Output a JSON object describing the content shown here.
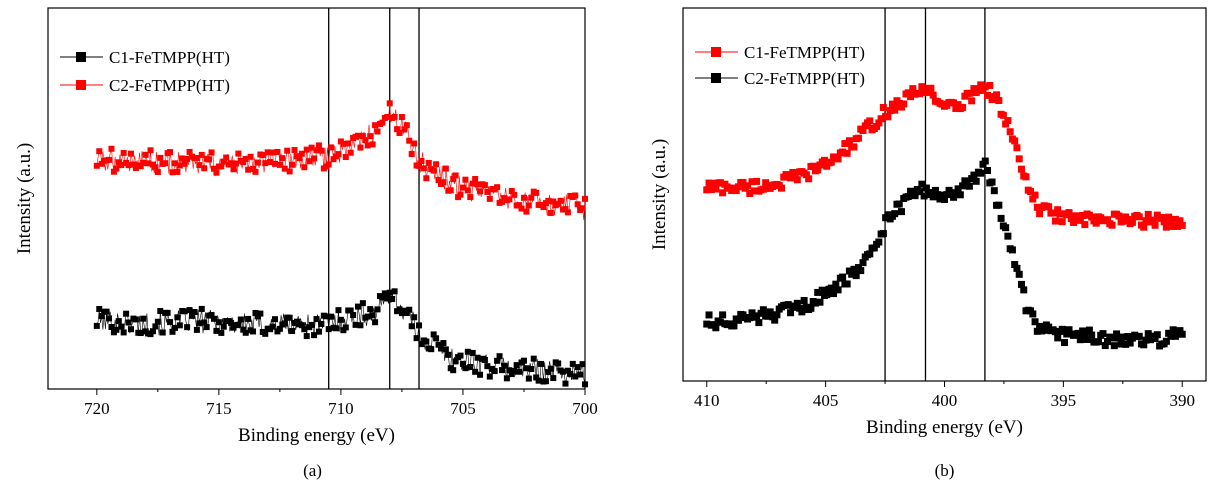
{
  "chart_data": [
    {
      "panel_label": "(a)",
      "type": "scatter",
      "xlabel": "Binding energy (eV)",
      "ylabel": "Intensity (a.u.)",
      "x_reversed": true,
      "xlim": [
        700,
        722
      ],
      "ylim": [
        0,
        100
      ],
      "xticks": [
        720,
        715,
        710,
        705,
        700
      ],
      "y_ticks_shown": false,
      "legend_position": "top-left",
      "reference_lines": [
        710.5,
        708.0,
        706.8
      ],
      "series": [
        {
          "name": "C1-FeTMPP(HT)",
          "color": "#000000",
          "marker": "square",
          "x": [
            720,
            718,
            716,
            714,
            712,
            710.6,
            709.5,
            708.5,
            708.0,
            707.6,
            707.2,
            706.8,
            706.2,
            705.5,
            704.5,
            703.5,
            702.5,
            701.5,
            700.5,
            700
          ],
          "y": [
            18,
            17,
            18,
            17,
            17,
            17,
            19,
            20,
            26,
            22,
            19,
            14,
            12,
            8,
            7,
            6,
            5,
            5,
            4,
            4
          ]
        },
        {
          "name": "C2-FeTMPP(HT)",
          "color": "#ff0000",
          "marker": "square",
          "x": [
            720,
            718,
            716,
            714,
            712,
            710.6,
            709.5,
            708.5,
            708.0,
            707.6,
            707.2,
            706.8,
            706.2,
            705.5,
            704.5,
            703.5,
            702.5,
            701.5,
            700.5,
            700
          ],
          "y": [
            60,
            60,
            59,
            59,
            60,
            61,
            64,
            68,
            72,
            70,
            66,
            60,
            57,
            54,
            52,
            50,
            49,
            48,
            48,
            47
          ]
        }
      ]
    },
    {
      "panel_label": "(b)",
      "type": "scatter",
      "xlabel": "Binding energy (eV)",
      "ylabel": "Intensity (a.u.)",
      "x_reversed": true,
      "xlim": [
        389,
        411
      ],
      "ylim": [
        0,
        100
      ],
      "xticks": [
        410,
        405,
        400,
        395,
        390
      ],
      "y_ticks_shown": false,
      "legend_position": "top-left",
      "reference_lines": [
        402.5,
        400.8,
        398.3
      ],
      "series": [
        {
          "name": "C1-FeTMPP(HT)",
          "color": "#ff0000",
          "marker": "square",
          "x": [
            410,
            409,
            408,
            407,
            406,
            405,
            404,
            403,
            402.5,
            402,
            401.5,
            401,
            400.8,
            400.5,
            400,
            399.5,
            399,
            398.5,
            398.3,
            398,
            397.5,
            397,
            396.5,
            396,
            395,
            394,
            393,
            392,
            391,
            390
          ],
          "y": [
            52,
            52,
            52,
            53,
            55,
            58,
            63,
            69,
            72,
            74,
            76,
            78,
            79,
            77,
            74,
            73,
            76,
            79,
            79,
            77,
            72,
            62,
            52,
            46,
            44,
            43,
            43,
            43,
            43,
            43
          ],
          "label_color": "#000000"
        },
        {
          "name": "C2-FeTMPP(HT)",
          "color": "#000000",
          "marker": "square",
          "x": [
            410,
            409,
            408,
            407,
            406,
            405,
            404,
            403,
            402.5,
            402,
            401.5,
            401,
            400.8,
            400.5,
            400,
            399.5,
            399,
            398.5,
            398.3,
            398,
            397.5,
            397,
            396.5,
            396,
            395,
            394,
            393,
            392,
            391,
            390
          ],
          "y": [
            16,
            16,
            17,
            18,
            20,
            23,
            28,
            35,
            42,
            46,
            49,
            51,
            51,
            50,
            49,
            50,
            53,
            56,
            58,
            53,
            42,
            30,
            19,
            14,
            12,
            12,
            11,
            11,
            11,
            13
          ]
        }
      ]
    }
  ]
}
